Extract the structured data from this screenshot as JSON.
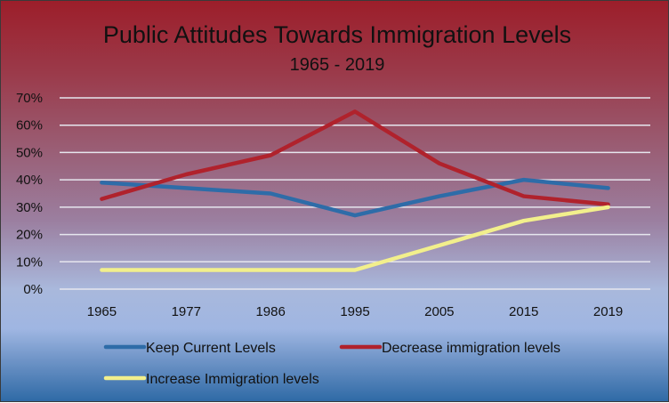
{
  "chart_data": {
    "type": "line",
    "title": "Public Attitudes Towards Immigration Levels",
    "subtitle": "1965 - 2019",
    "categories": [
      "1965",
      "1977",
      "1986",
      "1995",
      "2005",
      "2015",
      "2019"
    ],
    "y_ticks": [
      "0%",
      "10%",
      "20%",
      "30%",
      "40%",
      "50%",
      "60%",
      "70%"
    ],
    "ylim": [
      0,
      70
    ],
    "grid": true,
    "legend_position": "bottom",
    "series": [
      {
        "name": "Keep Current Levels",
        "color": "#2e6ca8",
        "values": [
          39,
          37,
          35,
          27,
          34,
          40,
          37
        ]
      },
      {
        "name": "Decrease immigration levels",
        "color": "#b0222c",
        "values": [
          33,
          42,
          49,
          65,
          46,
          34,
          31
        ]
      },
      {
        "name": "Increase Immigration levels",
        "color": "#f2ef8c",
        "values": [
          7,
          7,
          7,
          7,
          16,
          25,
          30
        ]
      }
    ]
  }
}
